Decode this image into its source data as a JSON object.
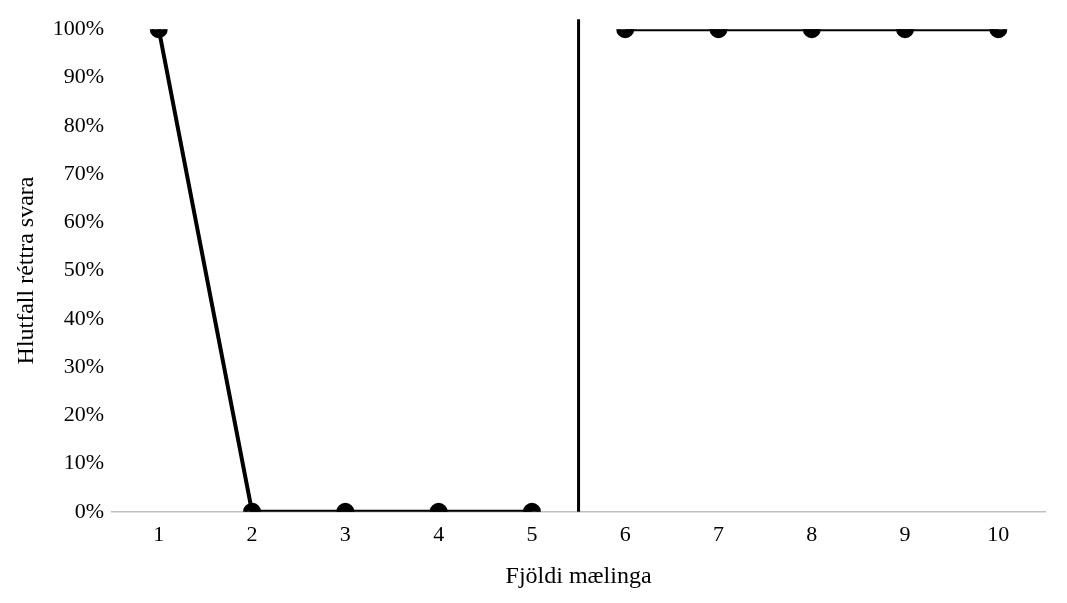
{
  "chart_data": {
    "type": "line",
    "xlabel": "Fjöldi mælinga",
    "ylabel": "Hlutfall réttra svara",
    "x": [
      1,
      2,
      3,
      4,
      5,
      6,
      7,
      8,
      9,
      10
    ],
    "series": [
      {
        "color": "#000000",
        "values": [
          100,
          0,
          0,
          0,
          0,
          null,
          null,
          null,
          null,
          null
        ]
      },
      {
        "color": "#000000",
        "values": [
          null,
          null,
          null,
          null,
          null,
          100,
          100,
          100,
          100,
          100
        ]
      }
    ],
    "xlim": [
      0.5,
      10.5
    ],
    "xticks": [
      1,
      2,
      3,
      4,
      5,
      6,
      7,
      8,
      9,
      10
    ],
    "ylim": [
      0,
      100
    ],
    "yticks": [
      {
        "value": 0,
        "label": "0%"
      },
      {
        "value": 10,
        "label": "10%"
      },
      {
        "value": 20,
        "label": "20%"
      },
      {
        "value": 30,
        "label": "30%"
      },
      {
        "value": 40,
        "label": "40%"
      },
      {
        "value": 50,
        "label": "50%"
      },
      {
        "value": 60,
        "label": "60%"
      },
      {
        "value": 70,
        "label": "70%"
      },
      {
        "value": 80,
        "label": "80%"
      },
      {
        "value": 90,
        "label": "90%"
      },
      {
        "value": 100,
        "label": "100%"
      }
    ],
    "ref_lines": [
      {
        "axis": "x",
        "value": 5.5,
        "color": "#000000"
      }
    ],
    "grid": false,
    "legend": false,
    "marker": "circle",
    "line_style": "solid"
  }
}
